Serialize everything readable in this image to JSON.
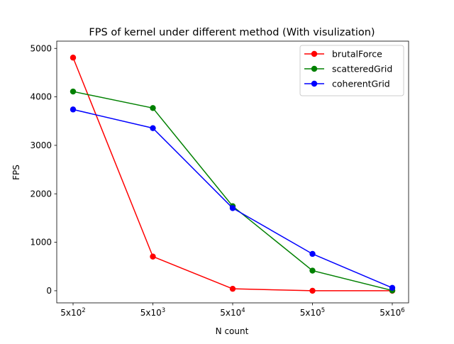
{
  "chart_data": {
    "type": "line",
    "title": "FPS of kernel under different method (With visulization)",
    "xlabel": "N count",
    "ylabel": "FPS",
    "categories": [
      "5x10^2",
      "5x10^3",
      "5x10^4",
      "5x10^5",
      "5x10^6"
    ],
    "category_labels": [
      {
        "base": "5x10",
        "exp": "2"
      },
      {
        "base": "5x10",
        "exp": "3"
      },
      {
        "base": "5x10",
        "exp": "4"
      },
      {
        "base": "5x10",
        "exp": "5"
      },
      {
        "base": "5x10",
        "exp": "6"
      }
    ],
    "ylim": [
      -250,
      5150
    ],
    "yticks": [
      0,
      1000,
      2000,
      3000,
      4000,
      5000
    ],
    "grid": false,
    "legend_position": "top-right",
    "series": [
      {
        "name": "brutalForce",
        "color": "#ff0000",
        "values": [
          4810,
          705,
          40,
          0,
          0
        ]
      },
      {
        "name": "scatteredGrid",
        "color": "#008000",
        "values": [
          4110,
          3770,
          1745,
          415,
          5
        ]
      },
      {
        "name": "coherentGrid",
        "color": "#0000ff",
        "values": [
          3740,
          3355,
          1705,
          760,
          60
        ]
      }
    ]
  }
}
